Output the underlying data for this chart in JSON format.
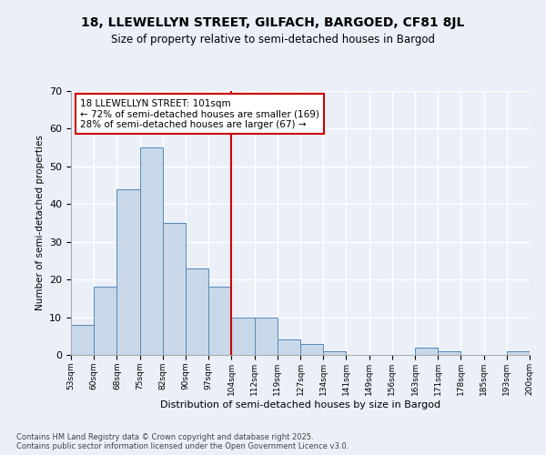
{
  "title1": "18, LLEWELLYN STREET, GILFACH, BARGOED, CF81 8JL",
  "title2": "Size of property relative to semi-detached houses in Bargod",
  "xlabel": "Distribution of semi-detached houses by size in Bargod",
  "ylabel": "Number of semi-detached properties",
  "bin_labels": [
    "53sqm",
    "60sqm",
    "68sqm",
    "75sqm",
    "82sqm",
    "90sqm",
    "97sqm",
    "104sqm",
    "112sqm",
    "119sqm",
    "127sqm",
    "134sqm",
    "141sqm",
    "149sqm",
    "156sqm",
    "163sqm",
    "171sqm",
    "178sqm",
    "185sqm",
    "193sqm",
    "200sqm"
  ],
  "bar_heights": [
    8,
    18,
    44,
    55,
    35,
    23,
    18,
    10,
    10,
    4,
    3,
    1,
    0,
    0,
    0,
    2,
    1,
    0,
    0,
    1
  ],
  "bar_color": "#c8d8e8",
  "bar_edge_color": "#5588bb",
  "vline_color": "#cc0000",
  "pct_smaller": 72,
  "n_smaller": 169,
  "pct_larger": 28,
  "n_larger": 67,
  "ylim": [
    0,
    70
  ],
  "yticks": [
    0,
    10,
    20,
    30,
    40,
    50,
    60,
    70
  ],
  "footer": "Contains HM Land Registry data © Crown copyright and database right 2025.\nContains public sector information licensed under the Open Government Licence v3.0.",
  "bg_color": "#eaeff8",
  "plot_bg_color": "#eaeff8"
}
